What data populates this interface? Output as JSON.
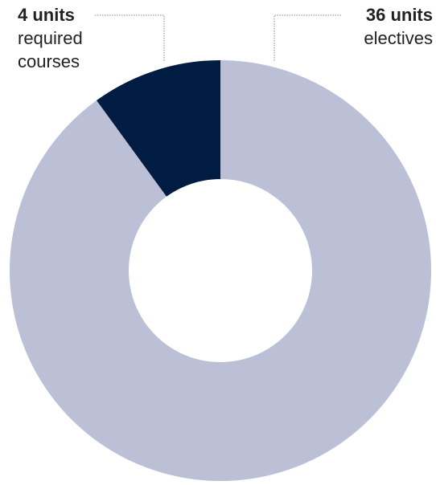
{
  "chart_data": {
    "type": "pie",
    "donut": true,
    "slices": [
      {
        "value": 4,
        "value_label": "4 units",
        "label": "required courses",
        "label_lines": [
          "required",
          "courses"
        ],
        "color": "#011c43"
      },
      {
        "value": 36,
        "value_label": "36 units",
        "label": "electives",
        "label_lines": [
          "electives"
        ],
        "color": "#bcc0d7"
      }
    ],
    "start": "12 o'clock",
    "direction": "clockwise, largest slice first",
    "leader_line_color": "#888888"
  }
}
